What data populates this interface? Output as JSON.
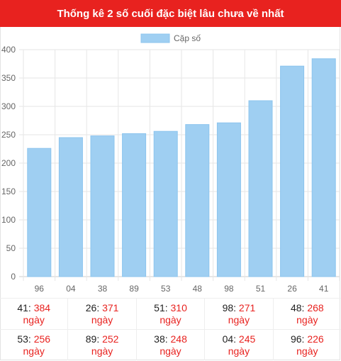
{
  "header": {
    "title": "Thống kê 2 số cuối đặc biệt lâu chưa về nhất"
  },
  "colors": {
    "header_bg": "#e8221f",
    "bar_fill": "#9fcff2",
    "bar_stroke": "#8cc4ee",
    "accent_red": "#e8221f"
  },
  "chart_data": {
    "type": "bar",
    "categories": [
      "96",
      "04",
      "38",
      "89",
      "53",
      "48",
      "98",
      "51",
      "26",
      "41"
    ],
    "series": [
      {
        "name": "Cặp số",
        "values": [
          226,
          245,
          248,
          252,
          256,
          268,
          271,
          310,
          371,
          384
        ]
      }
    ],
    "ylim": [
      0,
      400
    ],
    "yticks": [
      "0",
      "50",
      "100",
      "150",
      "200",
      "250",
      "300",
      "350",
      "400"
    ],
    "grid": true,
    "legend": "top-center"
  },
  "stats": {
    "unit": "ngày",
    "rows": [
      [
        {
          "number": "41",
          "days": "384"
        },
        {
          "number": "26",
          "days": "371"
        },
        {
          "number": "51",
          "days": "310"
        },
        {
          "number": "98",
          "days": "271"
        },
        {
          "number": "48",
          "days": "268"
        }
      ],
      [
        {
          "number": "53",
          "days": "256"
        },
        {
          "number": "89",
          "days": "252"
        },
        {
          "number": "38",
          "days": "248"
        },
        {
          "number": "04",
          "days": "245"
        },
        {
          "number": "96",
          "days": "226"
        }
      ]
    ]
  }
}
